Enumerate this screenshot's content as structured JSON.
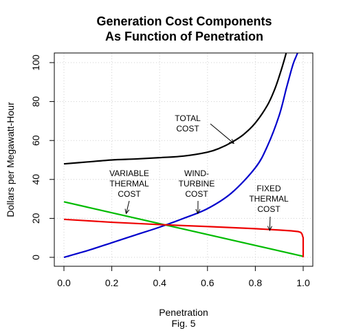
{
  "chart_data": {
    "type": "line",
    "title": [
      "Generation Cost Components",
      "As Function of Penetration"
    ],
    "xlabel": "Penetration",
    "caption": "Fig. 5",
    "ylabel": "Dollars per Megawatt-Hour",
    "xlim": [
      0,
      1
    ],
    "ylim": [
      0,
      100
    ],
    "xticks": [
      "0.0",
      "0.2",
      "0.4",
      "0.6",
      "0.8",
      "1.0"
    ],
    "yticks": [
      "0",
      "20",
      "40",
      "60",
      "80",
      "100"
    ],
    "grid": true,
    "series": [
      {
        "label": "TOTAL COST",
        "color": "#000000",
        "x": [
          0,
          0.1,
          0.2,
          0.3,
          0.4,
          0.5,
          0.6,
          0.65,
          0.7,
          0.75,
          0.8,
          0.85,
          0.88,
          0.9,
          0.92,
          0.94
        ],
        "y": [
          48,
          49,
          50,
          50.5,
          51.2,
          52,
          54,
          56,
          59,
          63,
          69,
          78,
          86,
          93,
          101,
          110
        ]
      },
      {
        "label": "WIND-TURBINE COST",
        "color": "#0000cc",
        "x": [
          0,
          0.1,
          0.2,
          0.3,
          0.4,
          0.5,
          0.6,
          0.7,
          0.8,
          0.85,
          0.9,
          0.93,
          0.95,
          0.96,
          0.97,
          0.98
        ],
        "y": [
          0,
          3.5,
          7.5,
          11.5,
          15.5,
          20,
          25,
          33,
          46,
          57,
          73,
          87,
          96,
          100,
          103,
          106
        ]
      },
      {
        "label": "VARIABLE THERMAL COST",
        "color": "#00bb00",
        "x": [
          0,
          1
        ],
        "y": [
          28.5,
          0.5
        ]
      },
      {
        "label": "FIXED THERMAL COST",
        "color": "#ee0000",
        "x": [
          0,
          0.2,
          0.4,
          0.6,
          0.8,
          0.9,
          0.95,
          0.98,
          0.99,
          0.995,
          1.0,
          1.0
        ],
        "y": [
          19.5,
          18,
          16.8,
          15.8,
          14.7,
          14,
          13.6,
          13.2,
          12.8,
          12,
          10,
          0
        ]
      }
    ],
    "annotations": [
      {
        "lines": [
          "TOTAL",
          "COST"
        ],
        "points_to": [
          0.71,
          58.5
        ]
      },
      {
        "lines": [
          "VARIABLE",
          "THERMAL",
          "COST"
        ],
        "points_to": [
          0.26,
          22.5
        ]
      },
      {
        "lines": [
          "WIND-",
          "TURBINE",
          "COST"
        ],
        "points_to": [
          0.56,
          22.5
        ]
      },
      {
        "lines": [
          "FIXED",
          "THERMAL",
          "COST"
        ],
        "points_to": [
          0.86,
          13.8
        ]
      }
    ]
  }
}
